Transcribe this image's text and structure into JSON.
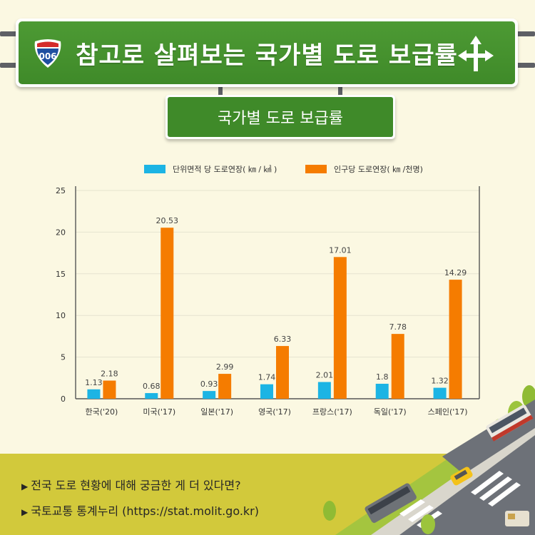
{
  "header": {
    "title": "참고로 살펴보는 국가별 도로 보급률",
    "shield_number": "006",
    "subtitle": "국가별 도로 보급률"
  },
  "chart_data": {
    "type": "bar",
    "title": "",
    "xlabel": "",
    "ylabel": "",
    "categories": [
      "한국('20)",
      "미국('17)",
      "일본('17)",
      "영국('17)",
      "프랑스('17)",
      "독일('17)",
      "스페인('17)"
    ],
    "series": [
      {
        "name": "단위면적 당 도로연장( ㎞ / ㎢ )",
        "color": "#1cb4e4",
        "values": [
          1.13,
          0.68,
          0.93,
          1.74,
          2.01,
          1.8,
          1.32
        ]
      },
      {
        "name": "인구당 도로연장( ㎞ /천명)",
        "color": "#f57c00",
        "values": [
          2.18,
          20.53,
          2.99,
          6.33,
          17.01,
          7.78,
          14.29
        ]
      }
    ],
    "ylim": [
      0,
      25
    ],
    "yticks": [
      0,
      5,
      10,
      15,
      20,
      25
    ],
    "legend_position": "top",
    "grid": true
  },
  "footer": {
    "lines": [
      "전국 도로 현황에 대해 궁금한 게 더 있다면?",
      "국토교통 통계누리 (https://stat.molit.go.kr)"
    ]
  },
  "colors": {
    "background": "#fbf8e2",
    "sign_green": "#3f8a29",
    "band": "#d2c93b"
  }
}
